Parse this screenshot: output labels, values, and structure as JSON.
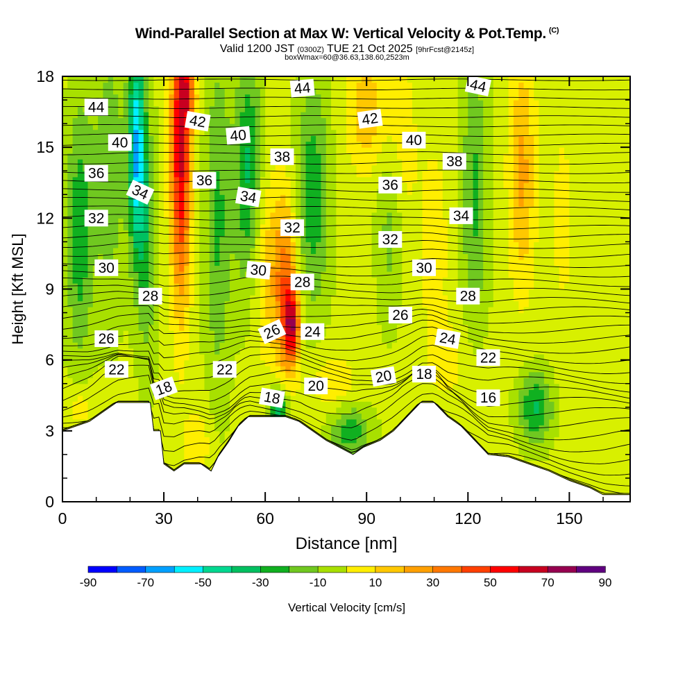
{
  "title": {
    "main": "Wind-Parallel Section at Max W: Vertical Velocity & Pot.Temp.",
    "copyright": "(C)",
    "valid_prefix": "Valid 1200 JST",
    "valid_utc": "(0300Z)",
    "valid_date": "TUE 21 Oct 2025",
    "forecast": "[9hrFcst@2145z]",
    "box_info": "boxWmax=60@36.63,138.60,2523m"
  },
  "colors": {
    "terrain": "#ffffff",
    "contour": "#000000",
    "palette": [
      "#0000ff",
      "#005cff",
      "#00a0ff",
      "#00f0ff",
      "#00d890",
      "#00c060",
      "#10b020",
      "#70c820",
      "#a8e000",
      "#d8f000",
      "#ffee00",
      "#ffc800",
      "#ffa000",
      "#ff7800",
      "#ff4000",
      "#ff0000",
      "#c80020",
      "#960050",
      "#600080"
    ]
  },
  "chart_data": {
    "type": "contour-section",
    "xlabel": "Distance [nm]",
    "ylabel": "Height [Kft MSL]",
    "xlim": [
      0,
      168
    ],
    "ylim": [
      0,
      18
    ],
    "xticks": [
      0,
      30,
      60,
      90,
      120,
      150
    ],
    "yticks": [
      0,
      3,
      6,
      9,
      12,
      15,
      18
    ],
    "colorbar": {
      "label": "Vertical Velocity [cm/s]",
      "levels": [
        -90,
        -80,
        -70,
        -60,
        -50,
        -40,
        -30,
        -20,
        -10,
        0,
        10,
        20,
        30,
        40,
        50,
        60,
        70,
        80,
        90
      ],
      "tick_labels": [
        "-90",
        "-70",
        "-50",
        "-30",
        "-10",
        "10",
        "30",
        "50",
        "70",
        "90"
      ]
    },
    "terrain_profile": [
      [
        0,
        3
      ],
      [
        8,
        3.4
      ],
      [
        12,
        3.8
      ],
      [
        16,
        4.2
      ],
      [
        26,
        4.2
      ],
      [
        27,
        3
      ],
      [
        29,
        3
      ],
      [
        30,
        1.6
      ],
      [
        33,
        1.3
      ],
      [
        36,
        1.6
      ],
      [
        41,
        1.6
      ],
      [
        44,
        1.3
      ],
      [
        46,
        1.9
      ],
      [
        49,
        2.5
      ],
      [
        52,
        3.2
      ],
      [
        55,
        3.6
      ],
      [
        66,
        3.6
      ],
      [
        70,
        3.4
      ],
      [
        74,
        3
      ],
      [
        78,
        2.6
      ],
      [
        82,
        2.3
      ],
      [
        86,
        2
      ],
      [
        89,
        2.3
      ],
      [
        94,
        2.6
      ],
      [
        98,
        3
      ],
      [
        102,
        3.6
      ],
      [
        106,
        4.2
      ],
      [
        110,
        4.2
      ],
      [
        114,
        3.6
      ],
      [
        118,
        3.2
      ],
      [
        122,
        2.6
      ],
      [
        126,
        2
      ],
      [
        132,
        1.9
      ],
      [
        138,
        1.6
      ],
      [
        144,
        1.3
      ],
      [
        150,
        0.9
      ],
      [
        156,
        0.6
      ],
      [
        160,
        0.3
      ],
      [
        168,
        0.3
      ]
    ],
    "velocity_cells": [
      {
        "x": 5,
        "y": 11.5,
        "sx": 4,
        "sy": 5.5,
        "w": -30
      },
      {
        "x": 14,
        "y": 14,
        "sx": 5,
        "sy": 6,
        "w": -20
      },
      {
        "x": 22,
        "y": 15,
        "sx": 2.5,
        "sy": 4.5,
        "w": -60
      },
      {
        "x": 25,
        "y": 11,
        "sx": 3,
        "sy": 5,
        "w": -25
      },
      {
        "x": 35,
        "y": 15,
        "sx": 3,
        "sy": 6.5,
        "w": 70
      },
      {
        "x": 37.5,
        "y": 17.2,
        "sx": 2.5,
        "sy": 1.4,
        "w": 30
      },
      {
        "x": 46,
        "y": 12,
        "sx": 4,
        "sy": 7,
        "w": -25
      },
      {
        "x": 55,
        "y": 14,
        "sx": 4,
        "sy": 5,
        "w": -35
      },
      {
        "x": 60,
        "y": 10,
        "sx": 4,
        "sy": 4,
        "w": 20
      },
      {
        "x": 66,
        "y": 9,
        "sx": 3.5,
        "sy": 4,
        "w": 45
      },
      {
        "x": 68,
        "y": 7.5,
        "sx": 2.2,
        "sy": 1.5,
        "w": 55
      },
      {
        "x": 74,
        "y": 13,
        "sx": 5,
        "sy": 5,
        "w": -30
      },
      {
        "x": 90,
        "y": 16.5,
        "sx": 6,
        "sy": 2.5,
        "w": 25
      },
      {
        "x": 97,
        "y": 12,
        "sx": 4,
        "sy": 4,
        "w": -20
      },
      {
        "x": 100,
        "y": 15,
        "sx": 5,
        "sy": 4,
        "w": 15
      },
      {
        "x": 110,
        "y": 11,
        "sx": 4,
        "sy": 4,
        "w": 15
      },
      {
        "x": 122,
        "y": 13,
        "sx": 4,
        "sy": 6,
        "w": -25
      },
      {
        "x": 136,
        "y": 14,
        "sx": 4,
        "sy": 5,
        "w": 30
      },
      {
        "x": 148,
        "y": 12,
        "sx": 4,
        "sy": 5,
        "w": 10
      },
      {
        "x": 140,
        "y": 4,
        "sx": 5,
        "sy": 1.5,
        "w": -35
      },
      {
        "x": 85,
        "y": 3,
        "sx": 6,
        "sy": 1.2,
        "w": -30
      },
      {
        "x": 64,
        "y": 4,
        "sx": 3,
        "sy": 1,
        "w": -45
      },
      {
        "x": 40,
        "y": 2.5,
        "sx": 4,
        "sy": 1.5,
        "w": 15
      },
      {
        "x": 5,
        "y": 4,
        "sx": 4,
        "sy": 1,
        "w": 15
      },
      {
        "x": 80,
        "y": 5,
        "sx": 8,
        "sy": 1.3,
        "w": 15
      },
      {
        "x": 115,
        "y": 6,
        "sx": 8,
        "sy": 2,
        "w": 10
      },
      {
        "x": 160,
        "y": 9,
        "sx": 6,
        "sy": 6,
        "w": 5
      }
    ],
    "contour_labels": [
      {
        "text": "44",
        "x": 10,
        "y": 16.7,
        "rot": 0
      },
      {
        "text": "40",
        "x": 17,
        "y": 15.2,
        "rot": 0
      },
      {
        "text": "36",
        "x": 10,
        "y": 13.9,
        "rot": 0
      },
      {
        "text": "34",
        "x": 23,
        "y": 13.1,
        "rot": 25
      },
      {
        "text": "32",
        "x": 10,
        "y": 12,
        "rot": 0
      },
      {
        "text": "30",
        "x": 13,
        "y": 9.9,
        "rot": 0
      },
      {
        "text": "28",
        "x": 26,
        "y": 8.7,
        "rot": 0
      },
      {
        "text": "26",
        "x": 13,
        "y": 6.9,
        "rot": 0
      },
      {
        "text": "22",
        "x": 16,
        "y": 5.6,
        "rot": 0
      },
      {
        "text": "18",
        "x": 30,
        "y": 4.8,
        "rot": -20
      },
      {
        "text": "42",
        "x": 40,
        "y": 16.1,
        "rot": 10
      },
      {
        "text": "40",
        "x": 52,
        "y": 15.5,
        "rot": -5
      },
      {
        "text": "36",
        "x": 42,
        "y": 13.6,
        "rot": 0
      },
      {
        "text": "34",
        "x": 55,
        "y": 12.9,
        "rot": 10
      },
      {
        "text": "30",
        "x": 58,
        "y": 9.8,
        "rot": 5
      },
      {
        "text": "22",
        "x": 48,
        "y": 5.6,
        "rot": 0
      },
      {
        "text": "18",
        "x": 62,
        "y": 4.4,
        "rot": 10
      },
      {
        "text": "26",
        "x": 62,
        "y": 7.2,
        "rot": -25
      },
      {
        "text": "24",
        "x": 74,
        "y": 7.2,
        "rot": 0
      },
      {
        "text": "28",
        "x": 71,
        "y": 9.3,
        "rot": 0
      },
      {
        "text": "32",
        "x": 68,
        "y": 11.6,
        "rot": 0
      },
      {
        "text": "38",
        "x": 65,
        "y": 14.6,
        "rot": 0
      },
      {
        "text": "44",
        "x": 71,
        "y": 17.5,
        "rot": -5
      },
      {
        "text": "42",
        "x": 91,
        "y": 16.2,
        "rot": -8
      },
      {
        "text": "40",
        "x": 104,
        "y": 15.3,
        "rot": 0
      },
      {
        "text": "38",
        "x": 116,
        "y": 14.4,
        "rot": 0
      },
      {
        "text": "36",
        "x": 97,
        "y": 13.4,
        "rot": 0
      },
      {
        "text": "34",
        "x": 118,
        "y": 12.1,
        "rot": 0
      },
      {
        "text": "32",
        "x": 97,
        "y": 11.1,
        "rot": 0
      },
      {
        "text": "30",
        "x": 107,
        "y": 9.9,
        "rot": 0
      },
      {
        "text": "28",
        "x": 120,
        "y": 8.7,
        "rot": 0
      },
      {
        "text": "26",
        "x": 100,
        "y": 7.9,
        "rot": 0
      },
      {
        "text": "24",
        "x": 114,
        "y": 6.9,
        "rot": 10
      },
      {
        "text": "22",
        "x": 126,
        "y": 6.1,
        "rot": 0
      },
      {
        "text": "20",
        "x": 75,
        "y": 4.9,
        "rot": 0
      },
      {
        "text": "20",
        "x": 95,
        "y": 5.3,
        "rot": -10
      },
      {
        "text": "18",
        "x": 107,
        "y": 5.4,
        "rot": 0
      },
      {
        "text": "16",
        "x": 126,
        "y": 4.4,
        "rot": 0
      },
      {
        "text": "44",
        "x": 123,
        "y": 17.6,
        "rot": 12
      }
    ]
  }
}
